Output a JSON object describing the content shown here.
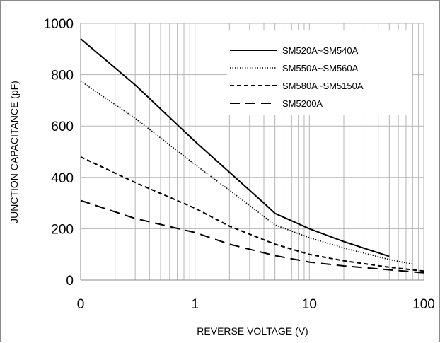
{
  "chart_data": {
    "type": "line",
    "title": "",
    "xlabel": "REVERSE VOLTAGE (V)",
    "ylabel": "JUNCTION CAPACITANCE (pF)",
    "xscale": "log",
    "xlim": [
      0.1,
      100
    ],
    "ylim": [
      0,
      1000
    ],
    "x_tick_labels": [
      "0",
      "1",
      "10",
      "100"
    ],
    "y_ticks": [
      0,
      200,
      400,
      600,
      800,
      1000
    ],
    "grid": true,
    "legend_position": "top-right",
    "series": [
      {
        "name": "SM520A~SM540A",
        "line_style": "solid",
        "color": "#000000",
        "x": [
          0.1,
          0.3,
          1,
          2,
          4,
          5,
          10,
          20,
          50
        ],
        "y": [
          940,
          760,
          540,
          420,
          300,
          260,
          200,
          150,
          92
        ]
      },
      {
        "name": "SM550A~SM560A",
        "line_style": "dotted",
        "color": "#000000",
        "x": [
          0.1,
          0.3,
          1,
          2,
          5,
          10,
          20,
          50,
          80
        ],
        "y": [
          775,
          630,
          450,
          350,
          215,
          165,
          125,
          80,
          62
        ]
      },
      {
        "name": "SM580A~SM5150A",
        "line_style": "dashed",
        "color": "#000000",
        "x": [
          0.1,
          0.3,
          1,
          2,
          5,
          10,
          20,
          50,
          100
        ],
        "y": [
          480,
          380,
          280,
          210,
          140,
          100,
          75,
          50,
          35
        ]
      },
      {
        "name": "SM5200A",
        "line_style": "long-dashed",
        "color": "#000000",
        "x": [
          0.1,
          0.3,
          1,
          2,
          5,
          10,
          20,
          50,
          100
        ],
        "y": [
          310,
          240,
          185,
          140,
          95,
          70,
          55,
          40,
          28
        ]
      }
    ]
  }
}
